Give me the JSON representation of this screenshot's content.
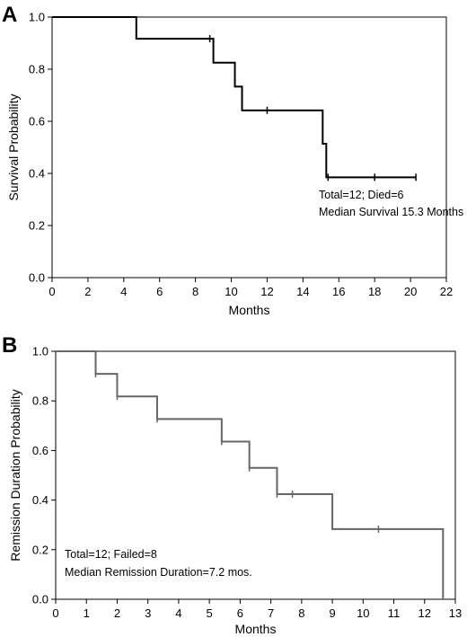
{
  "chart_data": [
    {
      "type": "line",
      "panel": "A",
      "xlabel": "Months",
      "ylabel": "Survival Probability",
      "xlim": [
        0,
        22
      ],
      "ylim": [
        0,
        1
      ],
      "xticks": [
        "0",
        "2",
        "4",
        "6",
        "8",
        "10",
        "12",
        "14",
        "16",
        "18",
        "20",
        "22"
      ],
      "yticks": [
        "0.0",
        "0.2",
        "0.4",
        "0.6",
        "0.8",
        "1.0"
      ],
      "grid": false,
      "line_color": "#000000",
      "series": [
        {
          "step": true,
          "x": [
            0,
            4.7,
            9.0,
            10.2,
            10.6,
            15.1,
            15.3,
            20.3
          ],
          "y": [
            1.0,
            0.917,
            0.825,
            0.733,
            0.642,
            0.514,
            0.385,
            0.385
          ],
          "censored_x": [
            8.8,
            12.0,
            15.4,
            18.0,
            20.3
          ],
          "censored_y": [
            0.917,
            0.642,
            0.385,
            0.385,
            0.385
          ]
        }
      ],
      "annotations": [
        "Total=12; Died=6",
        "Median Survival 15.3 Months"
      ]
    },
    {
      "type": "line",
      "panel": "B",
      "xlabel": "Months",
      "ylabel": "Remission Duration Probability",
      "xlim": [
        0,
        13
      ],
      "ylim": [
        0,
        1
      ],
      "xticks": [
        "0",
        "1",
        "2",
        "3",
        "4",
        "5",
        "6",
        "7",
        "8",
        "9",
        "10",
        "11",
        "12",
        "13"
      ],
      "yticks": [
        "0.0",
        "0.2",
        "0.4",
        "0.6",
        "0.8",
        "1.0"
      ],
      "grid": false,
      "line_color": "#666666",
      "series": [
        {
          "step": true,
          "x": [
            0,
            1.3,
            2.0,
            3.3,
            5.4,
            6.3,
            7.2,
            9.0,
            12.6
          ],
          "y": [
            1.0,
            0.909,
            0.818,
            0.727,
            0.636,
            0.53,
            0.424,
            0.283,
            0.0
          ],
          "censored_x": [
            1.3,
            2.0,
            3.3,
            5.4,
            6.3,
            7.2,
            7.7,
            10.5
          ],
          "censored_y": [
            0.909,
            0.818,
            0.727,
            0.636,
            0.53,
            0.424,
            0.424,
            0.283
          ]
        }
      ],
      "annotations": [
        "Total=12; Failed=8",
        "Median Remission Duration=7.2 mos."
      ]
    }
  ]
}
